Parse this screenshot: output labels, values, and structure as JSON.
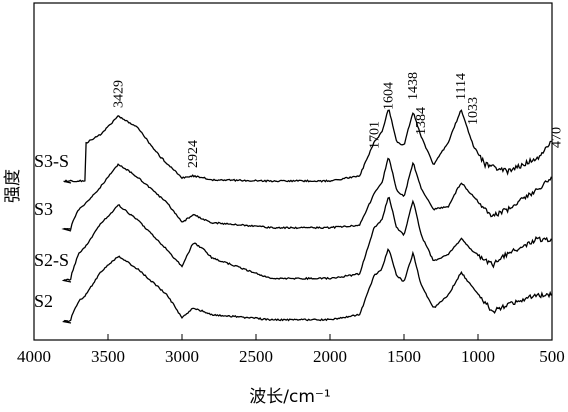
{
  "chart_data": {
    "type": "line",
    "title": "",
    "xlabel": "波长/cm⁻¹",
    "ylabel": "强度",
    "xlim": [
      4000,
      500
    ],
    "x_reversed": true,
    "x_ticks": [
      4000,
      3500,
      3000,
      2500,
      2000,
      1500,
      1000,
      500
    ],
    "y_ticks": [],
    "grid": false,
    "legend": "inline labels at left of each trace",
    "peak_labels": [
      "3429",
      "2924",
      "1701",
      "1604",
      "1438",
      "1384",
      "1114",
      "1033",
      "470"
    ],
    "series": [
      {
        "name": "S3-S",
        "points": [
          [
            3650,
            0.58
          ],
          [
            3550,
            0.72
          ],
          [
            3429,
            1.0
          ],
          [
            3300,
            0.82
          ],
          [
            3150,
            0.38
          ],
          [
            3000,
            0.05
          ],
          [
            2924,
            0.08
          ],
          [
            2800,
            0.02
          ],
          [
            2400,
            0.0
          ],
          [
            2000,
            0.0
          ],
          [
            1800,
            0.08
          ],
          [
            1701,
            0.6
          ],
          [
            1650,
            0.75
          ],
          [
            1604,
            1.12
          ],
          [
            1550,
            0.6
          ],
          [
            1500,
            0.55
          ],
          [
            1438,
            1.07
          ],
          [
            1384,
            0.68
          ],
          [
            1300,
            0.25
          ],
          [
            1200,
            0.6
          ],
          [
            1114,
            1.1
          ],
          [
            1033,
            0.55
          ],
          [
            950,
            0.25
          ],
          [
            800,
            0.15
          ],
          [
            600,
            0.35
          ],
          [
            470,
            0.65
          ],
          [
            500,
            0.6
          ]
        ]
      },
      {
        "name": "S3",
        "points": [
          [
            3750,
            0.05
          ],
          [
            3700,
            0.3
          ],
          [
            3650,
            0.4
          ],
          [
            3550,
            0.65
          ],
          [
            3429,
            1.0
          ],
          [
            3300,
            0.8
          ],
          [
            3100,
            0.4
          ],
          [
            3000,
            0.1
          ],
          [
            2924,
            0.22
          ],
          [
            2800,
            0.1
          ],
          [
            2400,
            0.02
          ],
          [
            2000,
            0.02
          ],
          [
            1800,
            0.06
          ],
          [
            1701,
            0.55
          ],
          [
            1650,
            0.7
          ],
          [
            1604,
            1.12
          ],
          [
            1550,
            0.6
          ],
          [
            1500,
            0.5
          ],
          [
            1438,
            1.02
          ],
          [
            1384,
            0.62
          ],
          [
            1300,
            0.3
          ],
          [
            1200,
            0.35
          ],
          [
            1114,
            0.72
          ],
          [
            1033,
            0.5
          ],
          [
            900,
            0.2
          ],
          [
            800,
            0.3
          ],
          [
            600,
            0.6
          ],
          [
            470,
            0.85
          ],
          [
            500,
            0.8
          ]
        ]
      },
      {
        "name": "S2-S",
        "points": [
          [
            3750,
            0.05
          ],
          [
            3700,
            0.35
          ],
          [
            3650,
            0.45
          ],
          [
            3550,
            0.75
          ],
          [
            3429,
            1.0
          ],
          [
            3300,
            0.8
          ],
          [
            3100,
            0.4
          ],
          [
            3000,
            0.18
          ],
          [
            2924,
            0.5
          ],
          [
            2850,
            0.4
          ],
          [
            2800,
            0.3
          ],
          [
            2400,
            0.02
          ],
          [
            2000,
            0.02
          ],
          [
            1800,
            0.08
          ],
          [
            1701,
            0.7
          ],
          [
            1650,
            0.8
          ],
          [
            1604,
            1.12
          ],
          [
            1550,
            0.7
          ],
          [
            1500,
            0.6
          ],
          [
            1438,
            1.07
          ],
          [
            1384,
            0.6
          ],
          [
            1300,
            0.25
          ],
          [
            1200,
            0.35
          ],
          [
            1114,
            0.55
          ],
          [
            1033,
            0.38
          ],
          [
            900,
            0.2
          ],
          [
            800,
            0.35
          ],
          [
            600,
            0.55
          ],
          [
            470,
            0.55
          ],
          [
            500,
            0.52
          ]
        ]
      },
      {
        "name": "S2",
        "points": [
          [
            3750,
            0.05
          ],
          [
            3700,
            0.3
          ],
          [
            3650,
            0.4
          ],
          [
            3550,
            0.75
          ],
          [
            3429,
            1.0
          ],
          [
            3300,
            0.8
          ],
          [
            3100,
            0.4
          ],
          [
            3000,
            0.05
          ],
          [
            2924,
            0.2
          ],
          [
            2800,
            0.1
          ],
          [
            2400,
            0.02
          ],
          [
            2000,
            0.02
          ],
          [
            1800,
            0.1
          ],
          [
            1701,
            0.7
          ],
          [
            1650,
            0.8
          ],
          [
            1604,
            1.12
          ],
          [
            1550,
            0.7
          ],
          [
            1500,
            0.6
          ],
          [
            1438,
            1.05
          ],
          [
            1384,
            0.55
          ],
          [
            1300,
            0.2
          ],
          [
            1200,
            0.4
          ],
          [
            1114,
            0.75
          ],
          [
            1033,
            0.5
          ],
          [
            900,
            0.15
          ],
          [
            800,
            0.25
          ],
          [
            600,
            0.4
          ],
          [
            470,
            0.42
          ],
          [
            500,
            0.4
          ]
        ]
      }
    ]
  }
}
